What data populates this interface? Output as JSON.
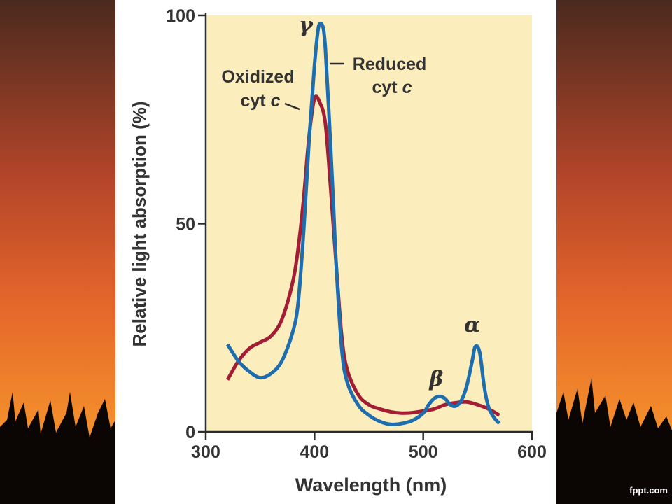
{
  "footer": {
    "credit": "fppt.com"
  },
  "colors": {
    "plot_background": "#FBEDBC",
    "reduced_series": "#1D6DAF",
    "oxidized_series": "#A31D35",
    "axis": "#2b2b2b",
    "text": "#333333"
  },
  "chart_data": {
    "type": "line",
    "title": "",
    "xlabel": "Wavelength (nm)",
    "ylabel": "Relative light absorption (%)",
    "xlim": [
      300,
      600
    ],
    "ylim": [
      0,
      100
    ],
    "xticks": [
      300,
      400,
      500,
      600
    ],
    "yticks": [
      0,
      50,
      100
    ],
    "grid": false,
    "legend": "none",
    "series": [
      {
        "name": "Reduced cyt c",
        "x": [
          320,
          330,
          340,
          350,
          360,
          370,
          380,
          385,
          390,
          395,
          400,
          403,
          405,
          408,
          410,
          413,
          417,
          420,
          425,
          430,
          440,
          450,
          460,
          470,
          480,
          490,
          500,
          505,
          510,
          515,
          520,
          525,
          530,
          535,
          540,
          545,
          548,
          552,
          556,
          560,
          565,
          570
        ],
        "y": [
          21,
          17,
          14.5,
          13,
          14,
          17,
          24,
          31,
          48,
          70,
          88,
          96,
          98,
          97,
          92,
          78,
          57,
          40,
          20,
          12,
          6.5,
          4,
          2.5,
          1.8,
          2,
          2.7,
          4.5,
          6.5,
          8,
          8.5,
          8,
          6.5,
          6.2,
          7.5,
          11,
          17,
          20.5,
          19,
          11,
          6,
          3.5,
          2
        ]
      },
      {
        "name": "Oxidized cyt c",
        "x": [
          320,
          330,
          340,
          350,
          360,
          370,
          380,
          385,
          390,
          395,
          400,
          405,
          410,
          415,
          420,
          425,
          430,
          440,
          450,
          460,
          470,
          480,
          490,
          500,
          510,
          520,
          530,
          540,
          550,
          560,
          570
        ],
        "y": [
          12.5,
          17,
          20,
          21.5,
          23,
          27,
          36,
          44,
          56,
          71,
          80,
          79,
          74,
          58,
          40,
          23,
          15,
          9,
          6.5,
          5.5,
          4.8,
          4.5,
          4.6,
          5,
          5.5,
          6.5,
          7,
          7.2,
          6.5,
          5.5,
          4
        ]
      }
    ],
    "annotations": [
      {
        "text": "γ",
        "x": 392,
        "y": 96
      },
      {
        "text": "β",
        "x": 512,
        "y": 11
      },
      {
        "text": "α",
        "x": 545,
        "y": 24
      }
    ]
  }
}
